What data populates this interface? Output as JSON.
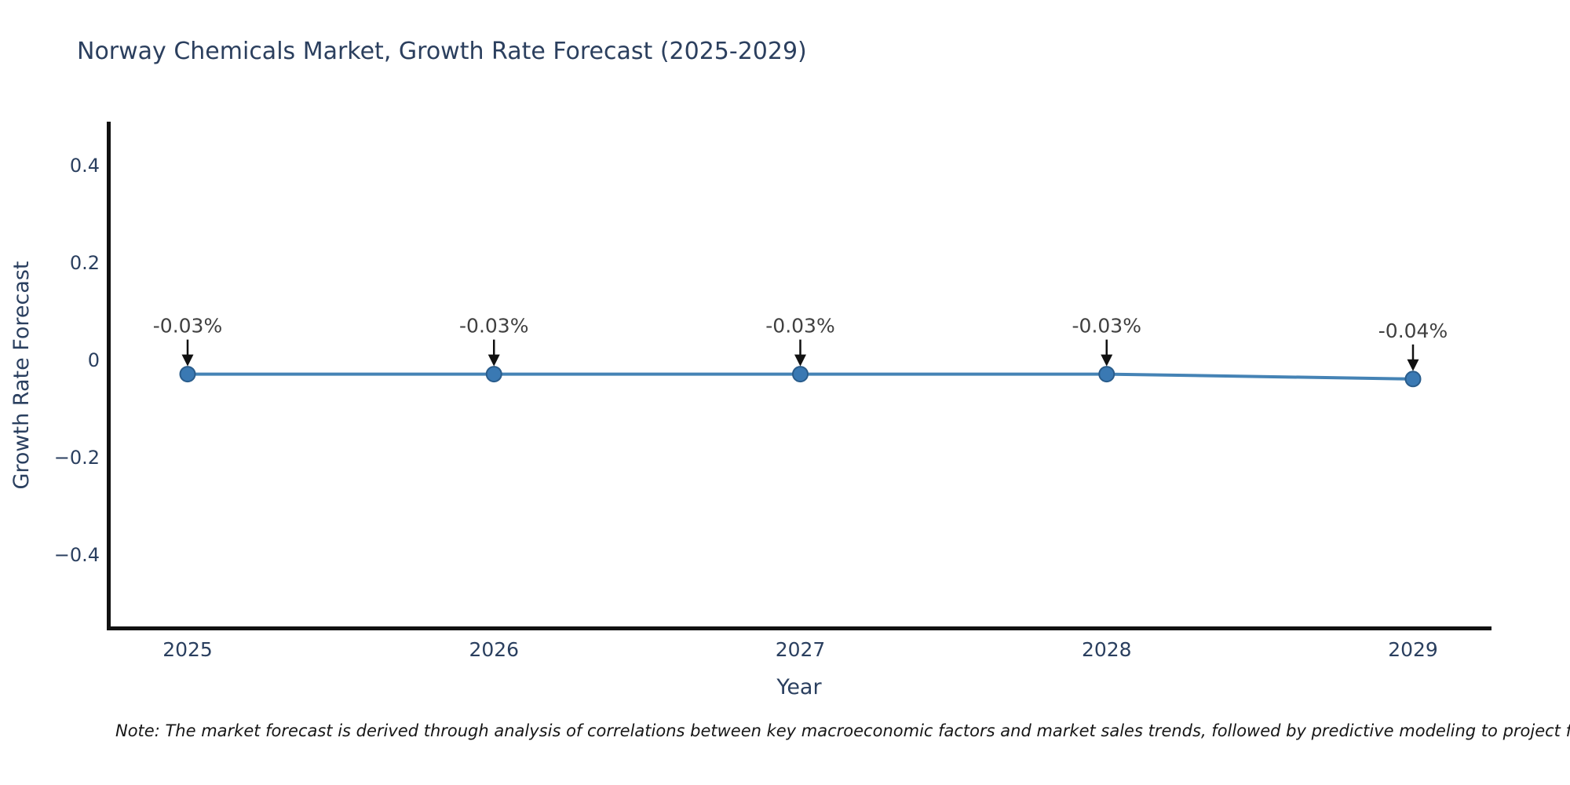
{
  "title": "Norway Chemicals Market, Growth Rate Forecast (2025-2029)",
  "note": "Note: The market forecast is derived through analysis of correlations between key macroeconomic factors and market sales trends, followed by predictive modeling to project future sales.",
  "chart_data": {
    "type": "line",
    "title": "Norway Chemicals Market, Growth Rate Forecast (2025-2029)",
    "xlabel": "Year",
    "ylabel": "Growth Rate Forecast",
    "x": [
      2025,
      2026,
      2027,
      2028,
      2029
    ],
    "xtick_labels": [
      "2025",
      "2026",
      "2027",
      "2028",
      "2029"
    ],
    "series": [
      {
        "name": "Growth Rate Forecast",
        "values": [
          -0.03,
          -0.03,
          -0.03,
          -0.03,
          -0.04
        ]
      }
    ],
    "point_annotations": [
      "-0.03%",
      "-0.03%",
      "-0.03%",
      "-0.03%",
      "-0.04%"
    ],
    "yticks": [
      0.4,
      0.2,
      0,
      -0.2,
      -0.4
    ],
    "ytick_labels": [
      "0.4",
      "0.2",
      "0",
      "−0.2",
      "−0.4"
    ],
    "ylim": [
      -0.55,
      0.49
    ],
    "grid": false,
    "legend": false,
    "colors": {
      "line": "#4583b5",
      "marker_fill": "#3a79b3",
      "marker_edge": "#2a5d8c",
      "axis_line": "#111111",
      "tick_label": "#2a3f5f",
      "axis_title": "#2a3f5f",
      "annotation_text": "#404040",
      "arrow": "#111111",
      "title": "#2b3f5e"
    }
  }
}
